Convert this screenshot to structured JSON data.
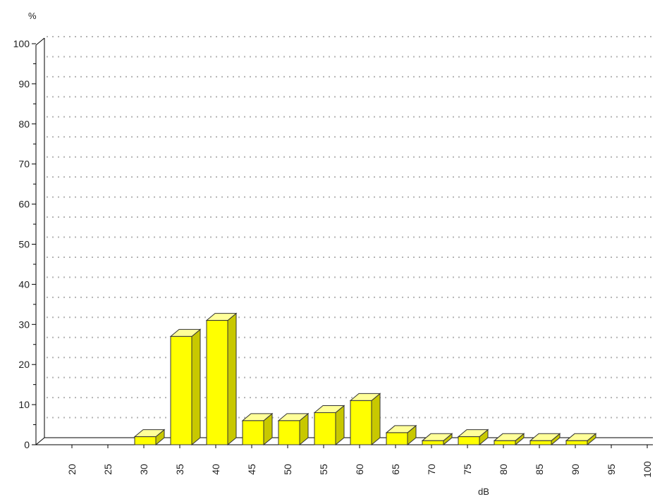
{
  "chart_data": {
    "type": "bar",
    "ylabel": "%",
    "xlabel": "dB",
    "ylim": [
      0,
      100
    ],
    "y_ticks": [
      "0",
      "10",
      "20",
      "30",
      "40",
      "50",
      "60",
      "70",
      "80",
      "90",
      "100"
    ],
    "categories": [
      "20",
      "25",
      "30",
      "35",
      "40",
      "45",
      "50",
      "55",
      "60",
      "65",
      "70",
      "75",
      "80",
      "85",
      "90",
      "95",
      "100"
    ],
    "values": [
      0,
      0,
      2,
      27,
      31,
      6,
      6,
      8,
      11,
      3,
      1,
      2,
      1,
      1,
      1,
      0,
      0
    ],
    "grid": "horizontal-dotted",
    "bar_style": "3d",
    "colors": {
      "bar_front": "#ffff00",
      "bar_top": "#ffff99",
      "bar_side": "#c8c800",
      "bar_outline": "#333333",
      "grid": "#b4b4b4",
      "axis": "#000000"
    }
  }
}
